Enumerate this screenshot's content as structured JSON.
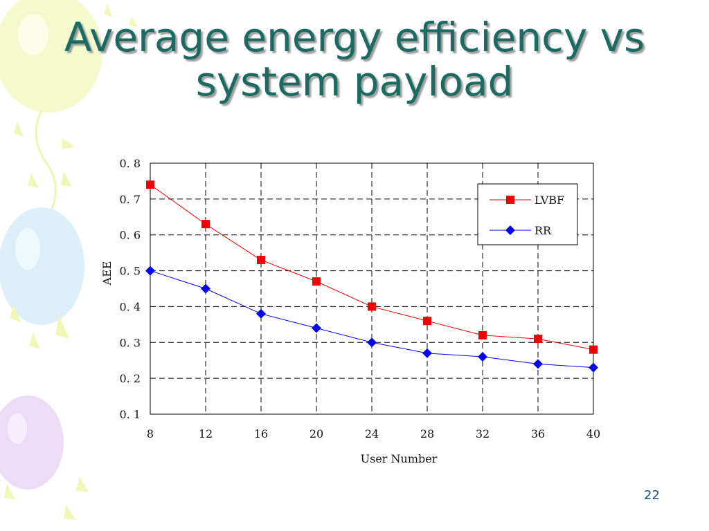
{
  "slide": {
    "title_line1": "Average energy efficiency vs",
    "title_line2": "system payload",
    "page_number": "22"
  },
  "colors": {
    "title": "#1b6b63",
    "series_lvbf": "#ee0000",
    "series_rr": "#0000ee"
  },
  "chart_data": {
    "type": "line",
    "title": "",
    "xlabel": "User Number",
    "ylabel": "AEE",
    "xlim": [
      8,
      40
    ],
    "ylim": [
      0.1,
      0.8
    ],
    "xticks": [
      8,
      12,
      16,
      20,
      24,
      28,
      32,
      36,
      40
    ],
    "xtick_labels": [
      "8",
      "12",
      "16",
      "20",
      "24",
      "28",
      "32",
      "36",
      "40"
    ],
    "yticks": [
      0.1,
      0.2,
      0.3,
      0.4,
      0.5,
      0.6,
      0.7,
      0.8
    ],
    "ytick_labels": [
      "0. 1",
      "0. 2",
      "0. 3",
      "0. 4",
      "0. 5",
      "0. 6",
      "0. 7",
      "0. 8"
    ],
    "grid": true,
    "legend_position": "top-right",
    "x": [
      8,
      12,
      16,
      20,
      24,
      28,
      32,
      36,
      40
    ],
    "series": [
      {
        "name": "LVBF",
        "marker": "square",
        "color": "#ee0000",
        "values": [
          0.74,
          0.63,
          0.53,
          0.47,
          0.4,
          0.36,
          0.32,
          0.31,
          0.28
        ]
      },
      {
        "name": "RR",
        "marker": "diamond",
        "color": "#0000ee",
        "values": [
          0.5,
          0.45,
          0.38,
          0.34,
          0.3,
          0.27,
          0.26,
          0.24,
          0.23
        ]
      }
    ]
  }
}
